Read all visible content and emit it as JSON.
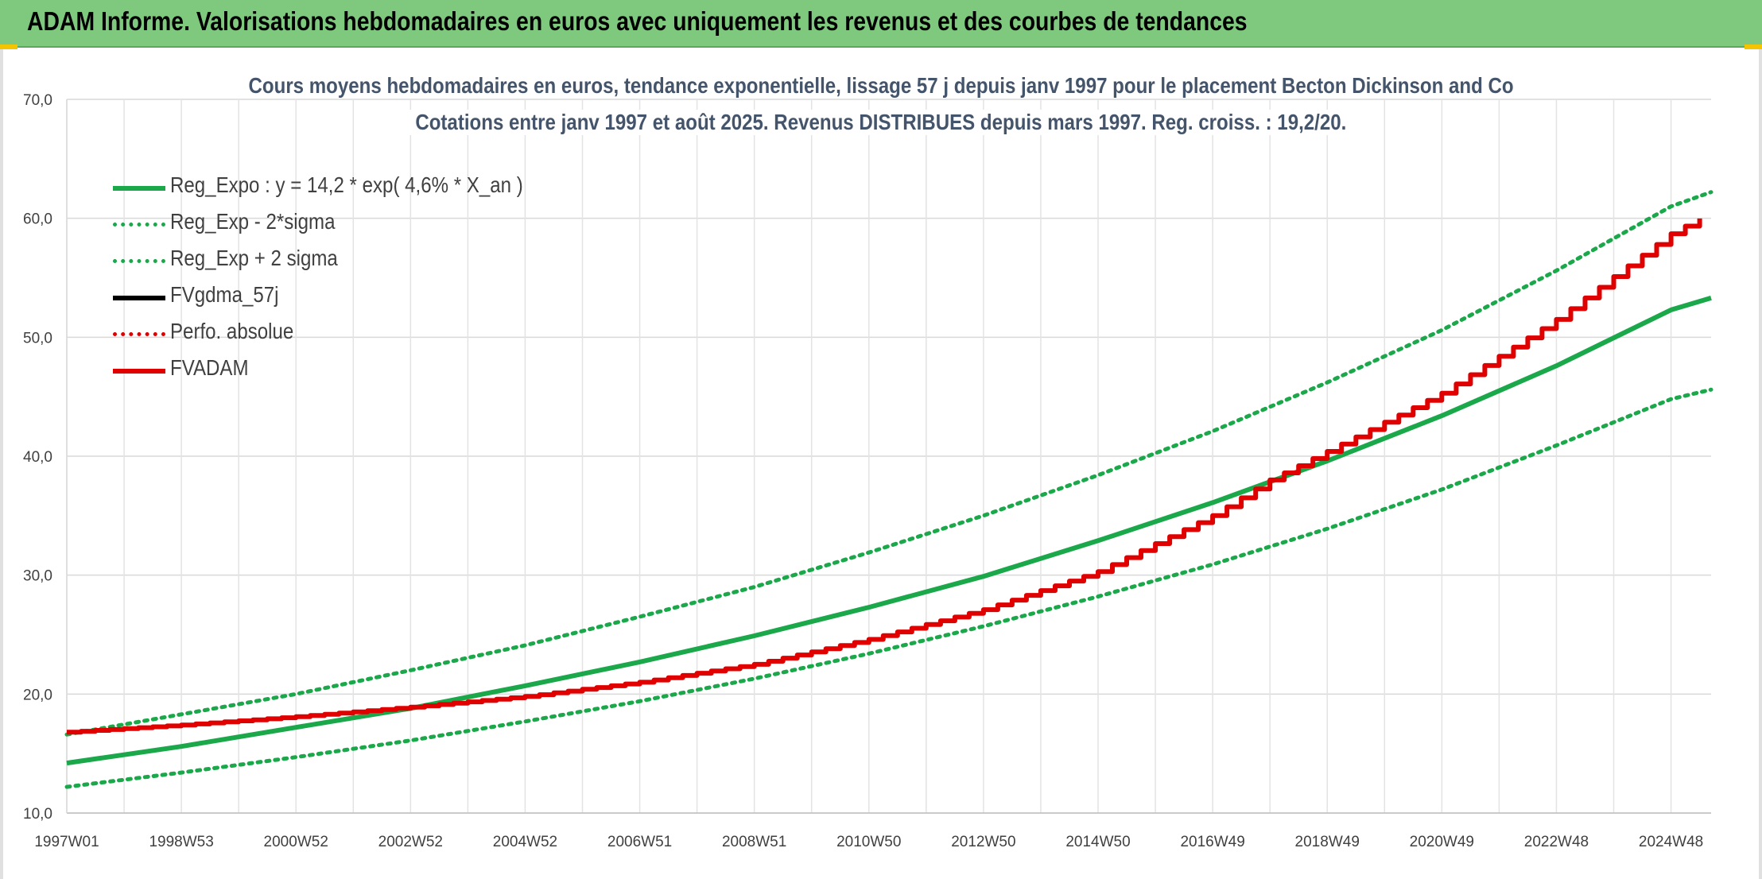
{
  "header": {
    "title": "ADAM Informe. Valorisations hebdomadaires en euros avec uniquement les revenus et des courbes de tendances"
  },
  "chart_data": {
    "type": "line",
    "title": "Cours moyens hebdomadaires en euros, tendance exponentielle, lissage 57 j depuis janv 1997 pour le placement Becton Dickinson and Co",
    "subtitle": "Cotations entre janv 1997 et août 2025. Revenus DISTRIBUES depuis mars 1997. Reg. croiss. : 19,2/20.",
    "xlabel": "",
    "ylabel": "",
    "ylim": [
      10,
      70
    ],
    "y_ticks": [
      "70,0",
      "60,0",
      "50,0",
      "40,0",
      "30,0",
      "20,0",
      "10,0"
    ],
    "x_ticks": [
      "1997W01",
      "1998W53",
      "2000W52",
      "2002W52",
      "2004W52",
      "2006W51",
      "2008W51",
      "2010W50",
      "2012W50",
      "2014W50",
      "2016W49",
      "2018W49",
      "2020W49",
      "2022W48",
      "2024W48"
    ],
    "x_tick_years": [
      1997.0,
      1999.0,
      2001.0,
      2003.0,
      2005.0,
      2007.0,
      2009.0,
      2011.0,
      2013.0,
      2015.0,
      2017.0,
      2019.0,
      2021.0,
      2023.0,
      2025.0
    ],
    "xlim": [
      1997.0,
      2025.7
    ],
    "grid": true,
    "legend_position": "top-left",
    "series": [
      {
        "name": "Reg_Expo : y = 14,2 * exp( 4,6% *  X_an )",
        "color": "#1aa84a",
        "style": "solid",
        "x": [
          1997.0,
          1999.0,
          2001.0,
          2003.0,
          2005.0,
          2007.0,
          2009.0,
          2011.0,
          2013.0,
          2015.0,
          2017.0,
          2019.0,
          2021.0,
          2023.0,
          2025.0,
          2025.7
        ],
        "values": [
          14.2,
          15.6,
          17.2,
          18.8,
          20.7,
          22.7,
          24.9,
          27.3,
          29.9,
          32.9,
          36.1,
          39.6,
          43.4,
          47.6,
          52.3,
          53.3
        ]
      },
      {
        "name": "Reg_Exp - 2*sigma",
        "color": "#1aa84a",
        "style": "dotted",
        "x": [
          1997.0,
          1999.0,
          2001.0,
          2003.0,
          2005.0,
          2007.0,
          2009.0,
          2011.0,
          2013.0,
          2015.0,
          2017.0,
          2019.0,
          2021.0,
          2023.0,
          2025.0,
          2025.7
        ],
        "values": [
          12.2,
          13.4,
          14.7,
          16.1,
          17.7,
          19.4,
          21.3,
          23.4,
          25.7,
          28.2,
          30.9,
          33.9,
          37.2,
          40.9,
          44.8,
          45.6
        ]
      },
      {
        "name": "Reg_Exp + 2 sigma",
        "color": "#1aa84a",
        "style": "dotted",
        "x": [
          1997.0,
          1999.0,
          2001.0,
          2003.0,
          2005.0,
          2007.0,
          2009.0,
          2011.0,
          2013.0,
          2015.0,
          2017.0,
          2019.0,
          2021.0,
          2023.0,
          2025.0,
          2025.7
        ],
        "values": [
          16.6,
          18.3,
          20.0,
          22.0,
          24.1,
          26.5,
          29.0,
          31.9,
          35.0,
          38.4,
          42.1,
          46.2,
          50.6,
          55.6,
          61.0,
          62.2
        ]
      },
      {
        "name": "FVgdma_57j",
        "color": "#000000",
        "style": "solid",
        "x": [],
        "values": []
      },
      {
        "name": "Perfo. absolue",
        "color": "#e00000",
        "style": "dotted",
        "x": [],
        "values": []
      },
      {
        "name": "FVADAM",
        "color": "#e00000",
        "style": "solid",
        "x": [
          1997.0,
          1999.0,
          2001.0,
          2003.0,
          2005.0,
          2007.0,
          2009.0,
          2011.0,
          2013.0,
          2015.0,
          2017.0,
          2018.0,
          2019.0,
          2021.0,
          2023.0,
          2025.0,
          2025.7
        ],
        "values": [
          16.8,
          17.4,
          18.1,
          18.9,
          19.8,
          21.0,
          22.5,
          24.6,
          27.1,
          30.3,
          35.0,
          38.0,
          40.4,
          45.3,
          51.5,
          58.7,
          60.5
        ]
      }
    ]
  }
}
